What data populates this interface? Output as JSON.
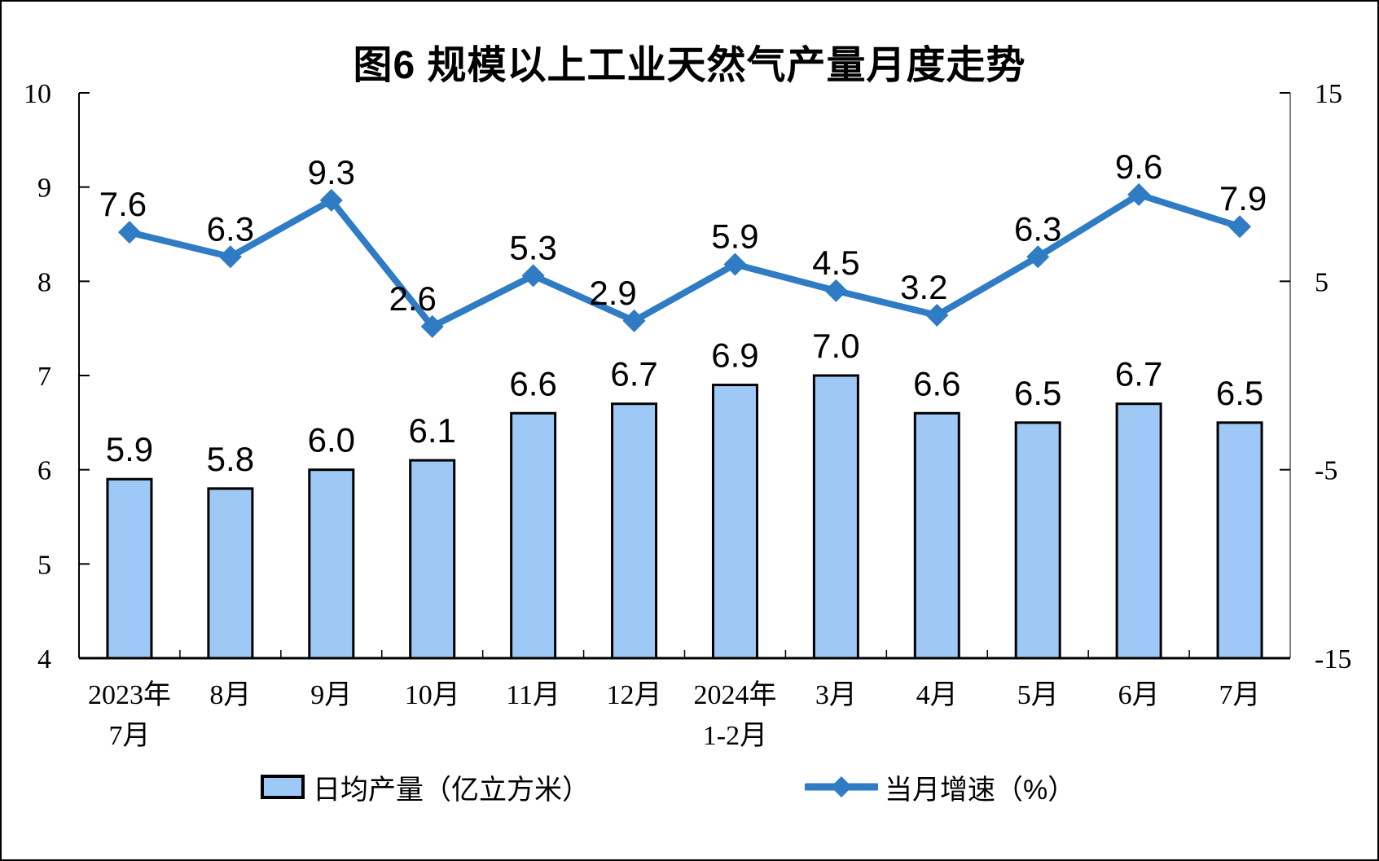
{
  "title": "图6 规模以上工业天然气产量月度走势",
  "colors": {
    "bar_fill": "#9EC9F7",
    "bar_border": "#000000",
    "line": "#2F7BC4",
    "axis": "#000000",
    "right_spine": "#808080",
    "text": "#000000",
    "background": "#ffffff"
  },
  "chart_data": {
    "type": "combo",
    "title": "图6 规模以上工业天然气产量月度走势",
    "categories": [
      [
        "2023年",
        "7月"
      ],
      [
        "8月"
      ],
      [
        "9月"
      ],
      [
        "10月"
      ],
      [
        "11月"
      ],
      [
        "12月"
      ],
      [
        "2024年",
        "1-2月"
      ],
      [
        "3月"
      ],
      [
        "4月"
      ],
      [
        "5月"
      ],
      [
        "6月"
      ],
      [
        "7月"
      ]
    ],
    "series": [
      {
        "name": "日均产量（亿立方米）",
        "type": "bar",
        "axis": "left",
        "values": [
          5.9,
          5.8,
          6.0,
          6.1,
          6.6,
          6.7,
          6.9,
          7.0,
          6.6,
          6.5,
          6.7,
          6.5
        ]
      },
      {
        "name": "当月增速（%）",
        "type": "line",
        "axis": "right",
        "values": [
          7.6,
          6.3,
          9.3,
          2.6,
          5.3,
          2.9,
          5.9,
          4.5,
          3.2,
          6.3,
          9.6,
          7.9
        ]
      }
    ],
    "left_axis": {
      "min": 4,
      "max": 10,
      "ticks": [
        10,
        9,
        8,
        7,
        6,
        5,
        4
      ]
    },
    "right_axis": {
      "min": -15,
      "max": 15,
      "ticks": [
        15,
        5,
        -5,
        -15
      ]
    },
    "grid": false,
    "data_labels": true,
    "legend_position": "bottom"
  }
}
